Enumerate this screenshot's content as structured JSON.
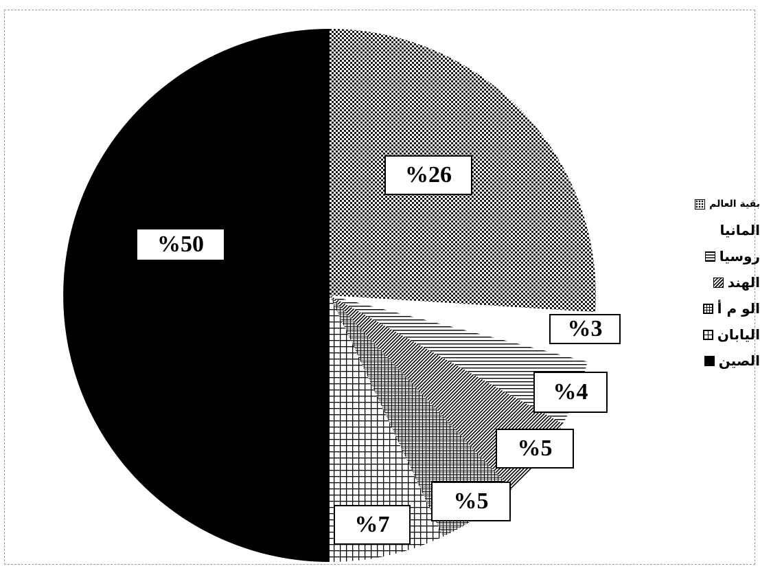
{
  "chart_data": {
    "type": "pie",
    "slices": [
      {
        "label": "بقية العالم",
        "value": 26,
        "pct_text": "%26",
        "pattern": "dots"
      },
      {
        "label": "المانيا",
        "value": 3,
        "pct_text": "%3",
        "pattern": "white"
      },
      {
        "label": "روسيا",
        "value": 4,
        "pct_text": "%4",
        "pattern": "hlines"
      },
      {
        "label": "الهند",
        "value": 5,
        "pct_text": "%5",
        "pattern": "diag"
      },
      {
        "label": "الو م أ",
        "value": 5,
        "pct_text": "%5",
        "pattern": "dense-grid"
      },
      {
        "label": "اليابان",
        "value": 7,
        "pct_text": "%7",
        "pattern": "grid"
      },
      {
        "label": "الصين",
        "value": 50,
        "pct_text": "%50",
        "pattern": "solid"
      }
    ],
    "legend": [
      "بقية العالم",
      "المانيا",
      "روسيا",
      "الهند",
      "الو م أ",
      "اليابان",
      "الصين"
    ],
    "colors": {
      "solid": "#000000",
      "background": "#ffffff",
      "stroke": "#000000"
    }
  }
}
